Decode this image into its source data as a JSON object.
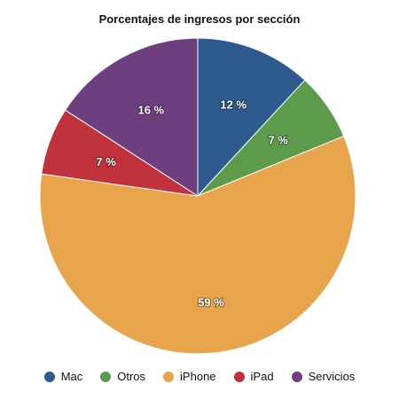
{
  "chart_data": {
    "type": "pie",
    "title": "Porcentajes de ingresos por sección",
    "categories": [
      "Mac",
      "Otros",
      "iPhone",
      "iPad",
      "Servicios"
    ],
    "values": [
      12,
      7,
      59,
      7,
      16
    ],
    "labels": [
      "12 %",
      "7 %",
      "59 %",
      "7 %",
      "16 %"
    ],
    "colors": [
      "#2d5b8e",
      "#5c9b4b",
      "#e8a44a",
      "#c0333c",
      "#6e3f7e"
    ],
    "legend_position": "bottom"
  }
}
